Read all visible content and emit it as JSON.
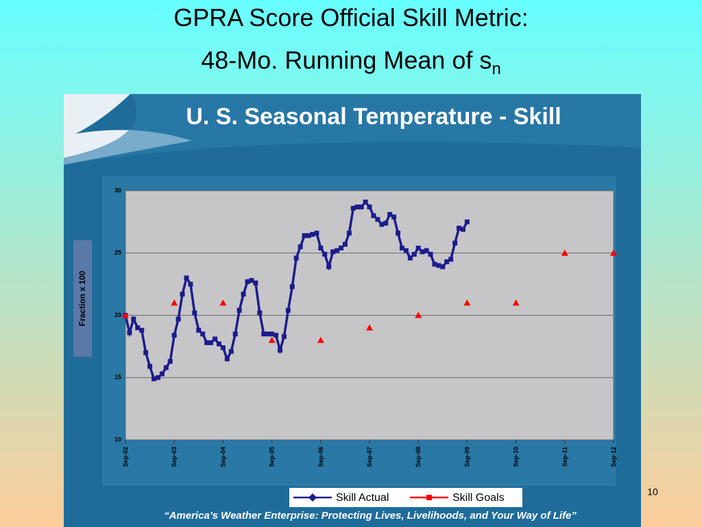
{
  "slide": {
    "title_line1": "GPRA Score Official Skill Metric:",
    "title_line2": "48-Mo. Running Mean of s",
    "title_subscript": "n",
    "footer": "“America’s Weather Enterprise: Protecting Lives, Livelihoods, and Your Way of Life”",
    "page_number": "10"
  },
  "chart_data": {
    "type": "line",
    "title": "U. S. Seasonal Temperature - Skill",
    "y_label": "Fraction x 100",
    "xlim": [
      0,
      120
    ],
    "ylim": [
      10,
      30
    ],
    "yticks": [
      10,
      15,
      20,
      25,
      30
    ],
    "grid": true,
    "xticks": [
      {
        "value": 0,
        "label": "Sep-02"
      },
      {
        "value": 12,
        "label": "Sep-03"
      },
      {
        "value": 24,
        "label": "Sep-04"
      },
      {
        "value": 36,
        "label": "Sep-05"
      },
      {
        "value": 48,
        "label": "Sep-06"
      },
      {
        "value": 60,
        "label": "Sep-07"
      },
      {
        "value": 72,
        "label": "Sep-08"
      },
      {
        "value": 84,
        "label": "Sep-09"
      },
      {
        "value": 96,
        "label": "Sep-10"
      },
      {
        "value": 108,
        "label": "Sep-11"
      },
      {
        "value": 120,
        "label": "Sep-12"
      }
    ],
    "series": [
      {
        "name": "Skill Actual",
        "color": "#1c1c8c",
        "marker": "square",
        "x": [
          0,
          1,
          2,
          3,
          4,
          5,
          6,
          7,
          8,
          9,
          10,
          11,
          12,
          13,
          14,
          15,
          16,
          17,
          18,
          19,
          20,
          21,
          22,
          23,
          24,
          25,
          26,
          27,
          28,
          29,
          30,
          31,
          32,
          33,
          34,
          35,
          36,
          37,
          38,
          39,
          40,
          41,
          42,
          43,
          44,
          45,
          46,
          47,
          48,
          49,
          50,
          51,
          52,
          53,
          54,
          55,
          56,
          57,
          58,
          59,
          60,
          61,
          62,
          63,
          64,
          65,
          66,
          67,
          68,
          69,
          70,
          71,
          72,
          73,
          74,
          75,
          76,
          77,
          78,
          79,
          80,
          81,
          82,
          83,
          84
        ],
        "values": [
          20,
          18.6,
          19.7,
          19,
          18.8,
          17,
          15.9,
          14.9,
          15,
          15.3,
          15.8,
          16.3,
          18.4,
          19.7,
          21.7,
          23,
          22.5,
          20.2,
          18.8,
          18.5,
          17.8,
          17.8,
          18.1,
          17.7,
          17.4,
          16.5,
          17.1,
          18.5,
          20.4,
          21.7,
          22.7,
          22.8,
          22.6,
          20.2,
          18.5,
          18.5,
          18.5,
          18.4,
          17.2,
          18.3,
          20.4,
          22.3,
          24.6,
          25.5,
          26.4,
          26.4,
          26.5,
          26.6,
          25.4,
          24.9,
          23.9,
          25.1,
          25.2,
          25.4,
          25.7,
          26.6,
          28.6,
          28.7,
          28.7,
          29.1,
          28.7,
          28,
          27.7,
          27.3,
          27.4,
          28.1,
          27.9,
          26.6,
          25.4,
          25.2,
          24.6,
          24.9,
          25.4,
          25.1,
          25.2,
          24.9,
          24.1,
          24,
          23.9,
          24.3,
          24.5,
          25.8,
          27,
          26.9,
          27.5
        ]
      },
      {
        "name": "Skill Goals",
        "color": "#ff0000",
        "marker": "triangle",
        "x": [
          0,
          12,
          24,
          36,
          48,
          60,
          72,
          84,
          96,
          108,
          120
        ],
        "values": [
          20,
          21,
          21,
          18,
          18,
          19,
          20,
          21,
          21,
          25,
          25
        ]
      }
    ]
  }
}
